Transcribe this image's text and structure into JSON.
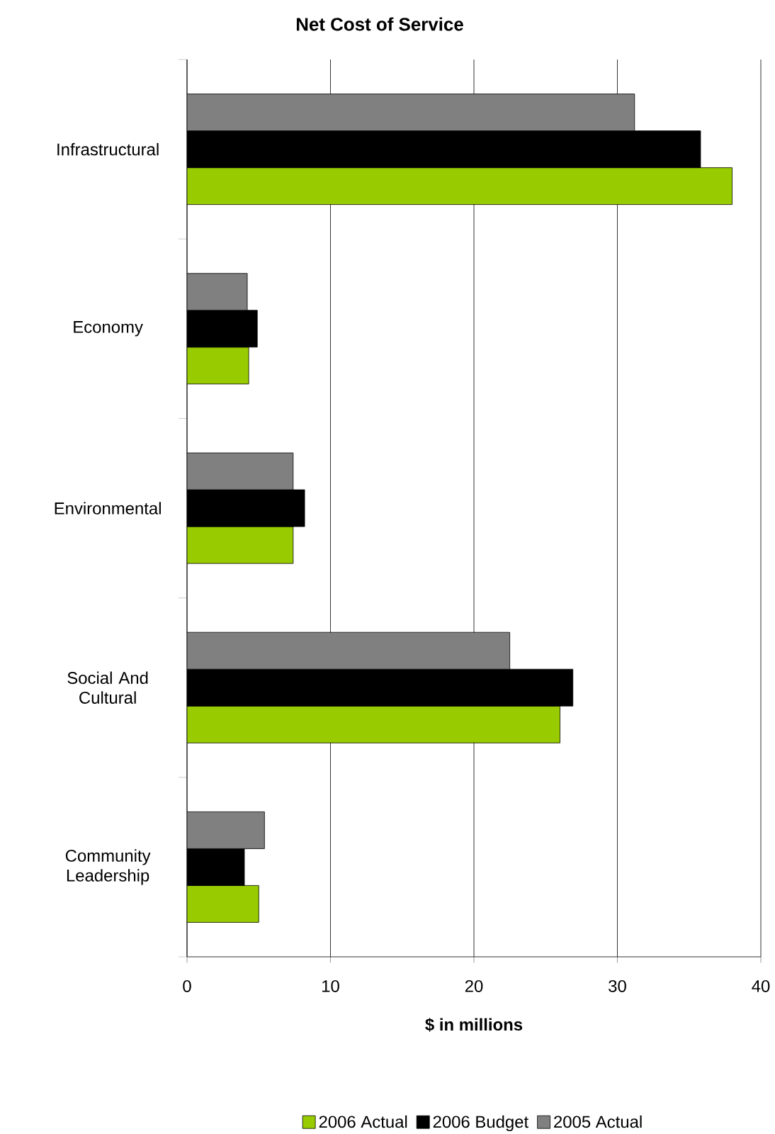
{
  "chart_data": {
    "type": "bar",
    "orientation": "horizontal",
    "title": "Net Cost of Service",
    "xlabel": "$ in millions",
    "categories": [
      "Infrastructural",
      "Economy",
      "Environmental",
      "Social And Cultural",
      "Community Leadership"
    ],
    "series": [
      {
        "name": "2006 Actual",
        "color": "#99cc00",
        "values": [
          38.0,
          4.3,
          7.4,
          26.0,
          5.0
        ]
      },
      {
        "name": "2006 Budget",
        "color": "#000000",
        "values": [
          35.8,
          4.9,
          8.2,
          26.9,
          4.0
        ]
      },
      {
        "name": "2005 Actual",
        "color": "#808080",
        "values": [
          31.2,
          4.2,
          7.4,
          22.5,
          5.4
        ]
      }
    ],
    "xlim": [
      0,
      40
    ],
    "xticks": [
      0,
      10,
      20,
      30,
      40
    ],
    "grid": "x",
    "legend": "bottom"
  }
}
